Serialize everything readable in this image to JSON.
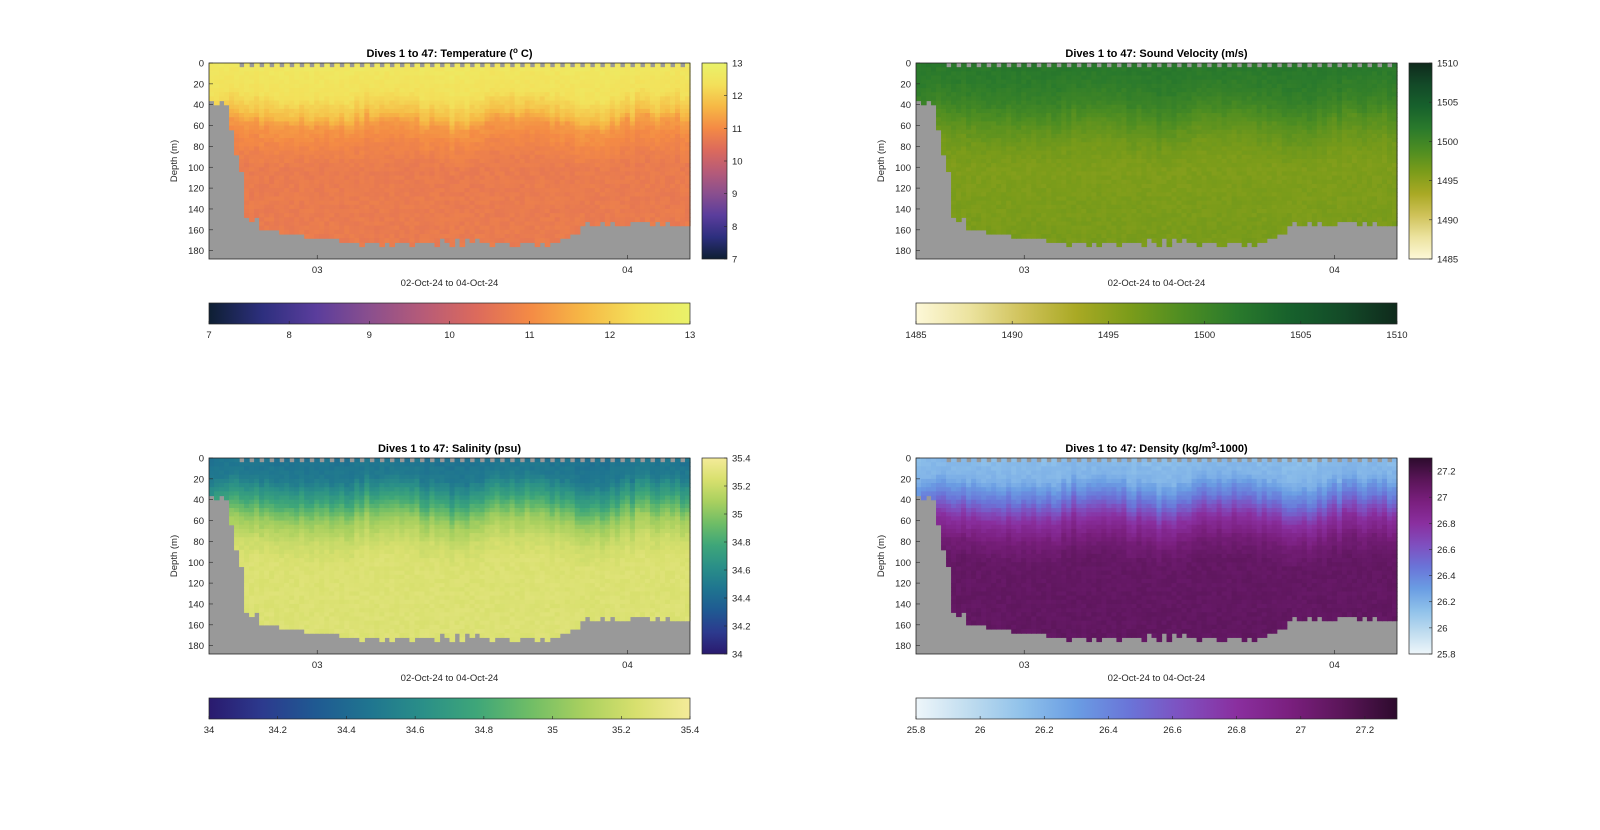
{
  "figure": {
    "background": "#ffffff",
    "land_color": "#999999"
  },
  "chart_data": [
    {
      "type": "heatmap",
      "id": "temperature",
      "title": "Dives 1 to 47: Temperature (",
      "title_sup": "o",
      "title_after": " C)",
      "ylabel": "Depth (m)",
      "xlabel": "02-Oct-24 to 04-Oct-24",
      "y_ticks": [
        "0",
        "20",
        "40",
        "60",
        "80",
        "100",
        "120",
        "140",
        "160",
        "180"
      ],
      "ylim": [
        0,
        188
      ],
      "x_ticks": [
        "03",
        "04"
      ],
      "x_tick_fraction": [
        0.225,
        0.87
      ],
      "clim": [
        7,
        13
      ],
      "colorbar_ticks": [
        "7",
        "8",
        "9",
        "10",
        "11",
        "12",
        "13"
      ],
      "colormap": [
        "#0e1f33",
        "#2d2f7e",
        "#5a3d9c",
        "#8a4f8e",
        "#b65b78",
        "#dc6a5c",
        "#f48a45",
        "#f6b845",
        "#f3e05a",
        "#e9f26a"
      ],
      "profile": {
        "depths": [
          0,
          30,
          50,
          60,
          80,
          100,
          188
        ],
        "values": [
          12.6,
          12.4,
          11.8,
          11.2,
          10.9,
          10.7,
          10.7
        ]
      },
      "surface_lo": 12.3,
      "surface_hi": 12.8
    },
    {
      "type": "heatmap",
      "id": "sound_velocity",
      "title": "Dives 1 to 47: Sound Velocity (m/s)",
      "ylabel": "Depth (m)",
      "xlabel": "02-Oct-24 to 04-Oct-24",
      "y_ticks": [
        "0",
        "20",
        "40",
        "60",
        "80",
        "100",
        "120",
        "140",
        "160",
        "180"
      ],
      "ylim": [
        0,
        188
      ],
      "x_ticks": [
        "03",
        "04"
      ],
      "x_tick_fraction": [
        0.225,
        0.87
      ],
      "clim": [
        1485,
        1510
      ],
      "colorbar_ticks": [
        "1485",
        "1490",
        "1495",
        "1500",
        "1505",
        "1510"
      ],
      "colormap": [
        "#fdf8d8",
        "#ece39f",
        "#cfc25a",
        "#a9a924",
        "#7b9c1a",
        "#4d8d22",
        "#2a7a2c",
        "#17612c",
        "#134a28",
        "#0f2a1c"
      ],
      "profile": {
        "depths": [
          0,
          20,
          40,
          60,
          80,
          100,
          188
        ],
        "values": [
          1501.8,
          1501.4,
          1500.2,
          1498.0,
          1496.6,
          1495.9,
          1496.3
        ]
      },
      "surface_lo": 1501,
      "surface_hi": 1502.5
    },
    {
      "type": "heatmap",
      "id": "salinity",
      "title": "Dives 1 to 47: Salinity (psu)",
      "ylabel": "Depth (m)",
      "xlabel": "02-Oct-24 to 04-Oct-24",
      "y_ticks": [
        "0",
        "20",
        "40",
        "60",
        "80",
        "100",
        "120",
        "140",
        "160",
        "180"
      ],
      "ylim": [
        0,
        188
      ],
      "x_ticks": [
        "03",
        "04"
      ],
      "x_tick_fraction": [
        0.225,
        0.87
      ],
      "clim": [
        34,
        35.4
      ],
      "colorbar_ticks": [
        "34",
        "34.2",
        "34.4",
        "34.6",
        "34.8",
        "35",
        "35.2",
        "35.4"
      ],
      "colormap": [
        "#2a1a6e",
        "#2c3a8e",
        "#1f5a92",
        "#1f7590",
        "#2a8f88",
        "#3ea679",
        "#6fbd66",
        "#a9d05f",
        "#d8e06e",
        "#f4eb99"
      ],
      "profile": {
        "depths": [
          0,
          20,
          40,
          60,
          80,
          100,
          188
        ],
        "values": [
          34.45,
          34.5,
          34.75,
          35.05,
          35.2,
          35.26,
          35.27
        ]
      },
      "surface_lo": 34.4,
      "surface_hi": 34.65
    },
    {
      "type": "heatmap",
      "id": "density",
      "title": "Dives 1 to 47: Density (kg/m",
      "title_sup": "3",
      "title_after": "-1000)",
      "ylabel": "Depth (m)",
      "xlabel": "02-Oct-24 to 04-Oct-24",
      "y_ticks": [
        "0",
        "20",
        "40",
        "60",
        "80",
        "100",
        "120",
        "140",
        "160",
        "180"
      ],
      "ylim": [
        0,
        188
      ],
      "x_ticks": [
        "03",
        "04"
      ],
      "x_tick_fraction": [
        0.225,
        0.87
      ],
      "clim": [
        25.8,
        27.3
      ],
      "colorbar_ticks": [
        "25.8",
        "26",
        "26.2",
        "26.4",
        "26.6",
        "26.8",
        "27",
        "27.2"
      ],
      "colorbar_tick_values": [
        25.8,
        26,
        26.2,
        26.4,
        26.6,
        26.8,
        27,
        27.2
      ],
      "colormap": [
        "#eef6fa",
        "#bfdcef",
        "#8fc1ea",
        "#6a9de3",
        "#6a74d8",
        "#7f4fbf",
        "#8a2f9f",
        "#7a1f7e",
        "#5a1558",
        "#2d0b2d"
      ],
      "profile": {
        "depths": [
          0,
          20,
          40,
          60,
          80,
          100,
          188
        ],
        "values": [
          26.15,
          26.2,
          26.45,
          26.8,
          27.0,
          27.08,
          27.1
        ]
      },
      "surface_lo": 26.0,
      "surface_hi": 26.3
    }
  ]
}
